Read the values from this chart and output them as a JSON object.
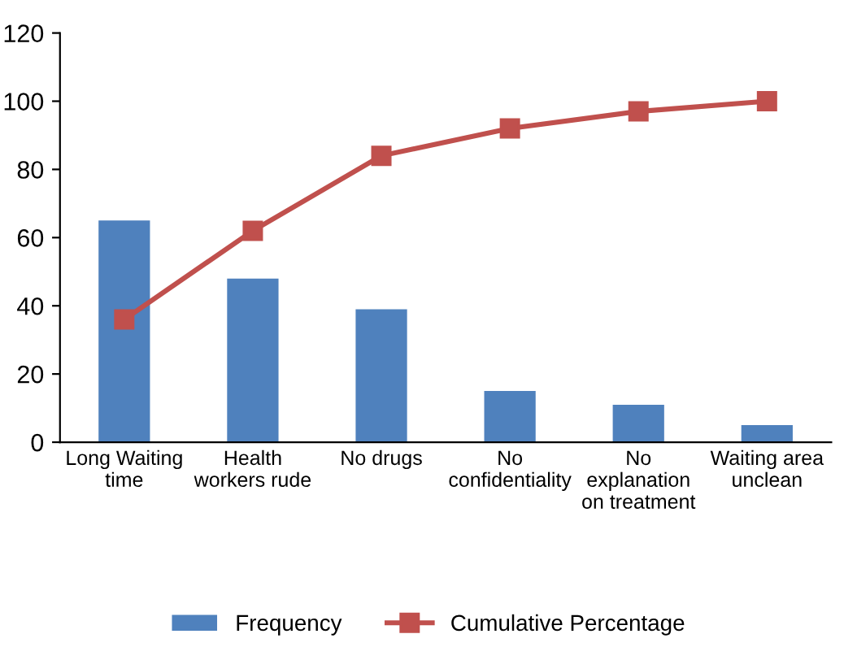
{
  "chart_data": {
    "type": "bar",
    "categories": [
      "Long Waiting\ntime",
      "Health\nworkers rude",
      "No drugs",
      "No\nconfidentiality",
      "No\nexplanation\non treatment",
      "Waiting area\nunclean"
    ],
    "series": [
      {
        "name": "Frequency",
        "color": "#4f81bd",
        "values": [
          65,
          48,
          39,
          15,
          11,
          5
        ]
      },
      {
        "name": "Cumulative Percentage",
        "type": "line",
        "color": "#c0504d",
        "marker": "square",
        "values": [
          36,
          62,
          84,
          92,
          97,
          100
        ]
      }
    ],
    "ylim": [
      0,
      120
    ],
    "yticks": [
      0,
      20,
      40,
      60,
      80,
      100,
      120
    ],
    "grid": false,
    "legend": "bottom"
  }
}
